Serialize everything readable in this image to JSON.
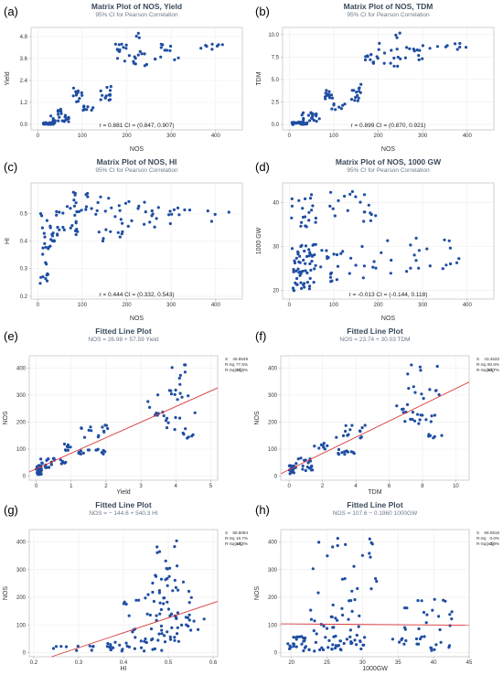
{
  "colors": {
    "point": "#1f4ea3",
    "fit_line": "#d83a3a",
    "title": "#3b4a5c"
  },
  "chart_data": [
    {
      "panel": "(a)",
      "type": "scatter",
      "title": "Matrix Plot of NOS, Yield",
      "subtitle": "95% CI for Pearson Correlation",
      "xlabel": "NOS",
      "ylabel": "Yield",
      "xlim": [
        -15,
        460
      ],
      "ylim": [
        -0.3,
        5.3
      ],
      "xticks": [
        0,
        100,
        200,
        300,
        400
      ],
      "yticks": [
        0.0,
        1.2,
        2.4,
        3.6,
        4.8
      ],
      "xtick_labels": [
        "0",
        "100",
        "200",
        "300",
        "400"
      ],
      "ytick_labels": [
        "0.0",
        "1.2",
        "2.4",
        "3.6",
        "4.8"
      ],
      "annotation": "r = 0.881  CI = (0.847, 0.907)",
      "groups": [
        {
          "xr": [
            5,
            40
          ],
          "yr": [
            0.0,
            0.12
          ],
          "n": 24
        },
        {
          "xr": [
            20,
            70
          ],
          "yr": [
            0.1,
            0.6
          ],
          "n": 20
        },
        {
          "xr": [
            45,
            65
          ],
          "yr": [
            0.7,
            0.9
          ],
          "n": 6
        },
        {
          "xr": [
            80,
            100
          ],
          "yr": [
            1.2,
            2.0
          ],
          "n": 14
        },
        {
          "xr": [
            95,
            125
          ],
          "yr": [
            0.75,
            1.0
          ],
          "n": 8
        },
        {
          "xr": [
            140,
            165
          ],
          "yr": [
            1.2,
            2.1
          ],
          "n": 14
        },
        {
          "xr": [
            170,
            200
          ],
          "yr": [
            3.4,
            4.6
          ],
          "n": 12
        },
        {
          "xr": [
            200,
            250
          ],
          "yr": [
            3.2,
            4.2
          ],
          "n": 12
        },
        {
          "xr": [
            210,
            230
          ],
          "yr": [
            4.7,
            5.0
          ],
          "n": 3
        },
        {
          "xr": [
            260,
            320
          ],
          "yr": [
            3.5,
            4.4
          ],
          "n": 12
        },
        {
          "xr": [
            330,
            430
          ],
          "yr": [
            4.1,
            4.4
          ],
          "n": 8
        }
      ]
    },
    {
      "panel": "(b)",
      "type": "scatter",
      "title": "Matrix Plot of NOS, TDM",
      "subtitle": "95% CI for Pearson Correlation",
      "xlabel": "NOS",
      "ylabel": "TDM",
      "xlim": [
        -15,
        460
      ],
      "ylim": [
        -0.6,
        10.8
      ],
      "xticks": [
        0,
        100,
        200,
        300,
        400
      ],
      "yticks": [
        0.0,
        2.5,
        5.0,
        7.5,
        10.0
      ],
      "xtick_labels": [
        "0",
        "100",
        "200",
        "300",
        "400"
      ],
      "ytick_labels": [
        "0.0",
        "2.5",
        "5.0",
        "7.5",
        "10.0"
      ],
      "annotation": "r = 0.899  CI = (0.870, 0.921)",
      "groups": [
        {
          "xr": [
            5,
            40
          ],
          "yr": [
            0.0,
            0.3
          ],
          "n": 24
        },
        {
          "xr": [
            20,
            70
          ],
          "yr": [
            0.3,
            1.4
          ],
          "n": 20
        },
        {
          "xr": [
            80,
            100
          ],
          "yr": [
            2.8,
            4.0
          ],
          "n": 12
        },
        {
          "xr": [
            95,
            125
          ],
          "yr": [
            1.5,
            2.3
          ],
          "n": 8
        },
        {
          "xr": [
            140,
            165
          ],
          "yr": [
            2.6,
            4.6
          ],
          "n": 14
        },
        {
          "xr": [
            170,
            200
          ],
          "yr": [
            6.8,
            8.6
          ],
          "n": 12
        },
        {
          "xr": [
            200,
            250
          ],
          "yr": [
            6.4,
            9.5
          ],
          "n": 12
        },
        {
          "xr": [
            230,
            250
          ],
          "yr": [
            9.6,
            10.2
          ],
          "n": 3
        },
        {
          "xr": [
            260,
            320
          ],
          "yr": [
            6.8,
            8.8
          ],
          "n": 12
        },
        {
          "xr": [
            330,
            430
          ],
          "yr": [
            8.3,
            9.2
          ],
          "n": 8
        }
      ]
    },
    {
      "panel": "(c)",
      "type": "scatter",
      "title": "Matrix Plot of NOS, HI",
      "subtitle": "95% CI for Pearson Correlation",
      "xlabel": "NOS",
      "ylabel": "HI",
      "xlim": [
        -15,
        460
      ],
      "ylim": [
        0.19,
        0.61
      ],
      "xticks": [
        0,
        100,
        200,
        300,
        400
      ],
      "yticks": [
        0.2,
        0.3,
        0.4,
        0.5
      ],
      "xtick_labels": [
        "0",
        "100",
        "200",
        "300",
        "400"
      ],
      "ytick_labels": [
        "0.2",
        "0.3",
        "0.4",
        "0.5"
      ],
      "annotation": "r = 0.444  CI = (0.332, 0.543)",
      "groups": [
        {
          "xr": [
            5,
            25
          ],
          "yr": [
            0.24,
            0.34
          ],
          "n": 10
        },
        {
          "xr": [
            5,
            40
          ],
          "yr": [
            0.35,
            0.5
          ],
          "n": 22
        },
        {
          "xr": [
            40,
            90
          ],
          "yr": [
            0.42,
            0.53
          ],
          "n": 22
        },
        {
          "xr": [
            80,
            130
          ],
          "yr": [
            0.5,
            0.58
          ],
          "n": 14
        },
        {
          "xr": [
            130,
            200
          ],
          "yr": [
            0.4,
            0.56
          ],
          "n": 22
        },
        {
          "xr": [
            200,
            300
          ],
          "yr": [
            0.45,
            0.55
          ],
          "n": 18
        },
        {
          "xr": [
            300,
            430
          ],
          "yr": [
            0.47,
            0.52
          ],
          "n": 10
        }
      ]
    },
    {
      "panel": "(d)",
      "type": "scatter",
      "title": "Matrix Plot of NOS, 1000 GW",
      "subtitle": "95% CI for Pearson Correlation",
      "xlabel": "NOS",
      "ylabel": "1000 GW",
      "xlim": [
        -15,
        460
      ],
      "ylim": [
        18.0,
        44.5
      ],
      "xticks": [
        0,
        100,
        200,
        300,
        400
      ],
      "yticks": [
        20,
        30,
        40
      ],
      "xtick_labels": [
        "0",
        "100",
        "200",
        "300",
        "400"
      ],
      "ytick_labels": [
        "20",
        "30",
        "40"
      ],
      "annotation": "r = -0.013  CI = (-0.144, 0.118)",
      "groups": [
        {
          "xr": [
            5,
            60
          ],
          "yr": [
            19.5,
            30.5
          ],
          "n": 60
        },
        {
          "xr": [
            5,
            60
          ],
          "yr": [
            34.0,
            42.5
          ],
          "n": 20
        },
        {
          "xr": [
            60,
            200
          ],
          "yr": [
            22.0,
            30.0
          ],
          "n": 26
        },
        {
          "xr": [
            80,
            200
          ],
          "yr": [
            35.0,
            43.0
          ],
          "n": 20
        },
        {
          "xr": [
            200,
            420
          ],
          "yr": [
            22.5,
            32.0
          ],
          "n": 22
        }
      ]
    },
    {
      "panel": "(e)",
      "type": "scatter",
      "title": "Fitted Line Plot",
      "subtitle": "NOS = 26.98 + 57.59 Yield",
      "xlabel": "Yield",
      "ylabel": "NOS",
      "xlim": [
        -0.2,
        5.2
      ],
      "ylim": [
        -15,
        445
      ],
      "xticks": [
        0,
        1,
        2,
        3,
        4,
        5
      ],
      "yticks": [
        0,
        100,
        200,
        300,
        400
      ],
      "xtick_labels": [
        "0",
        "1",
        "2",
        "3",
        "4",
        "5"
      ],
      "ytick_labels": [
        "0",
        "100",
        "200",
        "300",
        "400"
      ],
      "fit": {
        "intercept": 26.98,
        "slope": 57.59
      },
      "stats": [
        [
          "S",
          "46.9549"
        ],
        [
          "R-Sq",
          "77.5%"
        ],
        [
          "R-Sq(adj)",
          "77.4%"
        ]
      ],
      "groups": [
        {
          "xr": [
            0.0,
            0.15
          ],
          "yr": [
            5,
            40
          ],
          "n": 24
        },
        {
          "xr": [
            0.1,
            0.6
          ],
          "yr": [
            20,
            70
          ],
          "n": 20
        },
        {
          "xr": [
            0.7,
            0.9
          ],
          "yr": [
            45,
            65
          ],
          "n": 6
        },
        {
          "xr": [
            1.2,
            2.0
          ],
          "yr": [
            80,
            100
          ],
          "n": 14
        },
        {
          "xr": [
            0.75,
            1.0
          ],
          "yr": [
            95,
            125
          ],
          "n": 8
        },
        {
          "xr": [
            1.2,
            2.1
          ],
          "yr": [
            140,
            190
          ],
          "n": 14
        },
        {
          "xr": [
            3.4,
            4.6
          ],
          "yr": [
            170,
            240
          ],
          "n": 12
        },
        {
          "xr": [
            3.2,
            4.2
          ],
          "yr": [
            200,
            320
          ],
          "n": 12
        },
        {
          "xr": [
            3.6,
            4.4
          ],
          "yr": [
            280,
            420
          ],
          "n": 10
        },
        {
          "xr": [
            4.1,
            4.5
          ],
          "yr": [
            140,
            160
          ],
          "n": 6
        }
      ]
    },
    {
      "panel": "(f)",
      "type": "scatter",
      "title": "Fitted Line Plot",
      "subtitle": "NOS = 23.74 + 30.03 TDM",
      "xlabel": "TDM",
      "ylabel": "NOS",
      "xlim": [
        -0.5,
        10.8
      ],
      "ylim": [
        -15,
        445
      ],
      "xticks": [
        0,
        2,
        4,
        6,
        8,
        10
      ],
      "yticks": [
        0,
        100,
        200,
        300,
        400
      ],
      "xtick_labels": [
        "0",
        "2",
        "4",
        "6",
        "8",
        "10"
      ],
      "ytick_labels": [
        "0",
        "100",
        "200",
        "300",
        "400"
      ],
      "fit": {
        "intercept": 23.74,
        "slope": 30.03
      },
      "stats": [
        [
          "S",
          "43.4532"
        ],
        [
          "R-Sq",
          "80.8%"
        ],
        [
          "R-Sq(adj)",
          "80.7%"
        ]
      ],
      "groups": [
        {
          "xr": [
            0.0,
            0.3
          ],
          "yr": [
            5,
            40
          ],
          "n": 24
        },
        {
          "xr": [
            0.3,
            1.4
          ],
          "yr": [
            20,
            70
          ],
          "n": 20
        },
        {
          "xr": [
            2.8,
            4.0
          ],
          "yr": [
            80,
            100
          ],
          "n": 12
        },
        {
          "xr": [
            1.5,
            2.3
          ],
          "yr": [
            95,
            125
          ],
          "n": 8
        },
        {
          "xr": [
            2.6,
            4.6
          ],
          "yr": [
            140,
            190
          ],
          "n": 14
        },
        {
          "xr": [
            6.8,
            8.6
          ],
          "yr": [
            170,
            240
          ],
          "n": 12
        },
        {
          "xr": [
            6.4,
            9.5
          ],
          "yr": [
            200,
            320
          ],
          "n": 12
        },
        {
          "xr": [
            7.0,
            9.2
          ],
          "yr": [
            280,
            420
          ],
          "n": 10
        },
        {
          "xr": [
            8.3,
            9.2
          ],
          "yr": [
            140,
            160
          ],
          "n": 6
        }
      ]
    },
    {
      "panel": "(g)",
      "type": "scatter",
      "title": "Fitted Line Plot",
      "subtitle": "NOS = − 144.6 + 540.3 HI",
      "xlabel": "HI",
      "ylabel": "NOS",
      "xlim": [
        0.19,
        0.61
      ],
      "ylim": [
        -15,
        445
      ],
      "xticks": [
        0.2,
        0.3,
        0.4,
        0.5,
        0.6
      ],
      "yticks": [
        0,
        100,
        200,
        300,
        400
      ],
      "xtick_labels": [
        "0.2",
        "0.3",
        "0.4",
        "0.5",
        "0.6"
      ],
      "ytick_labels": [
        "0",
        "100",
        "200",
        "300",
        "400"
      ],
      "fit": {
        "intercept": -144.6,
        "slope": 540.3
      },
      "stats": [
        [
          "S",
          "88.8094"
        ],
        [
          "R-Sq",
          "19.7%"
        ],
        [
          "R-Sq(adj)",
          "19.2%"
        ]
      ],
      "groups": [
        {
          "xr": [
            0.24,
            0.34
          ],
          "yr": [
            5,
            25
          ],
          "n": 10
        },
        {
          "xr": [
            0.35,
            0.5
          ],
          "yr": [
            5,
            40
          ],
          "n": 24
        },
        {
          "xr": [
            0.42,
            0.53
          ],
          "yr": [
            40,
            90
          ],
          "n": 24
        },
        {
          "xr": [
            0.45,
            0.58
          ],
          "yr": [
            80,
            140
          ],
          "n": 18
        },
        {
          "xr": [
            0.4,
            0.56
          ],
          "yr": [
            130,
            200
          ],
          "n": 22
        },
        {
          "xr": [
            0.45,
            0.55
          ],
          "yr": [
            200,
            300
          ],
          "n": 18
        },
        {
          "xr": [
            0.47,
            0.52
          ],
          "yr": [
            300,
            430
          ],
          "n": 10
        }
      ]
    },
    {
      "panel": "(h)",
      "type": "scatter",
      "title": "Fitted Line Plot",
      "subtitle": "NOS = 107.6 − 0.1960 1000GW",
      "xlabel": "1000GW",
      "ylabel": "NOS",
      "xlim": [
        18.5,
        45.0
      ],
      "ylim": [
        -15,
        445
      ],
      "xticks": [
        20,
        25,
        30,
        35,
        40,
        45
      ],
      "yticks": [
        0,
        100,
        200,
        300,
        400
      ],
      "xtick_labels": [
        "20",
        "25",
        "30",
        "35",
        "40",
        "45"
      ],
      "ytick_labels": [
        "0",
        "100",
        "200",
        "300",
        "400"
      ],
      "fit": {
        "intercept": 107.6,
        "slope": -0.196
      },
      "stats": [
        [
          "S",
          "99.0816"
        ],
        [
          "R-Sq",
          "0.0%"
        ],
        [
          "R-Sq(adj)",
          "0.0%"
        ]
      ],
      "groups": [
        {
          "xr": [
            19.5,
            30.5
          ],
          "yr": [
            5,
            60
          ],
          "n": 60
        },
        {
          "xr": [
            34.0,
            42.5
          ],
          "yr": [
            5,
            60
          ],
          "n": 20
        },
        {
          "xr": [
            22.0,
            30.0
          ],
          "yr": [
            60,
            200
          ],
          "n": 26
        },
        {
          "xr": [
            35.0,
            43.0
          ],
          "yr": [
            80,
            200
          ],
          "n": 20
        },
        {
          "xr": [
            22.5,
            32.0
          ],
          "yr": [
            200,
            420
          ],
          "n": 22
        }
      ]
    }
  ]
}
